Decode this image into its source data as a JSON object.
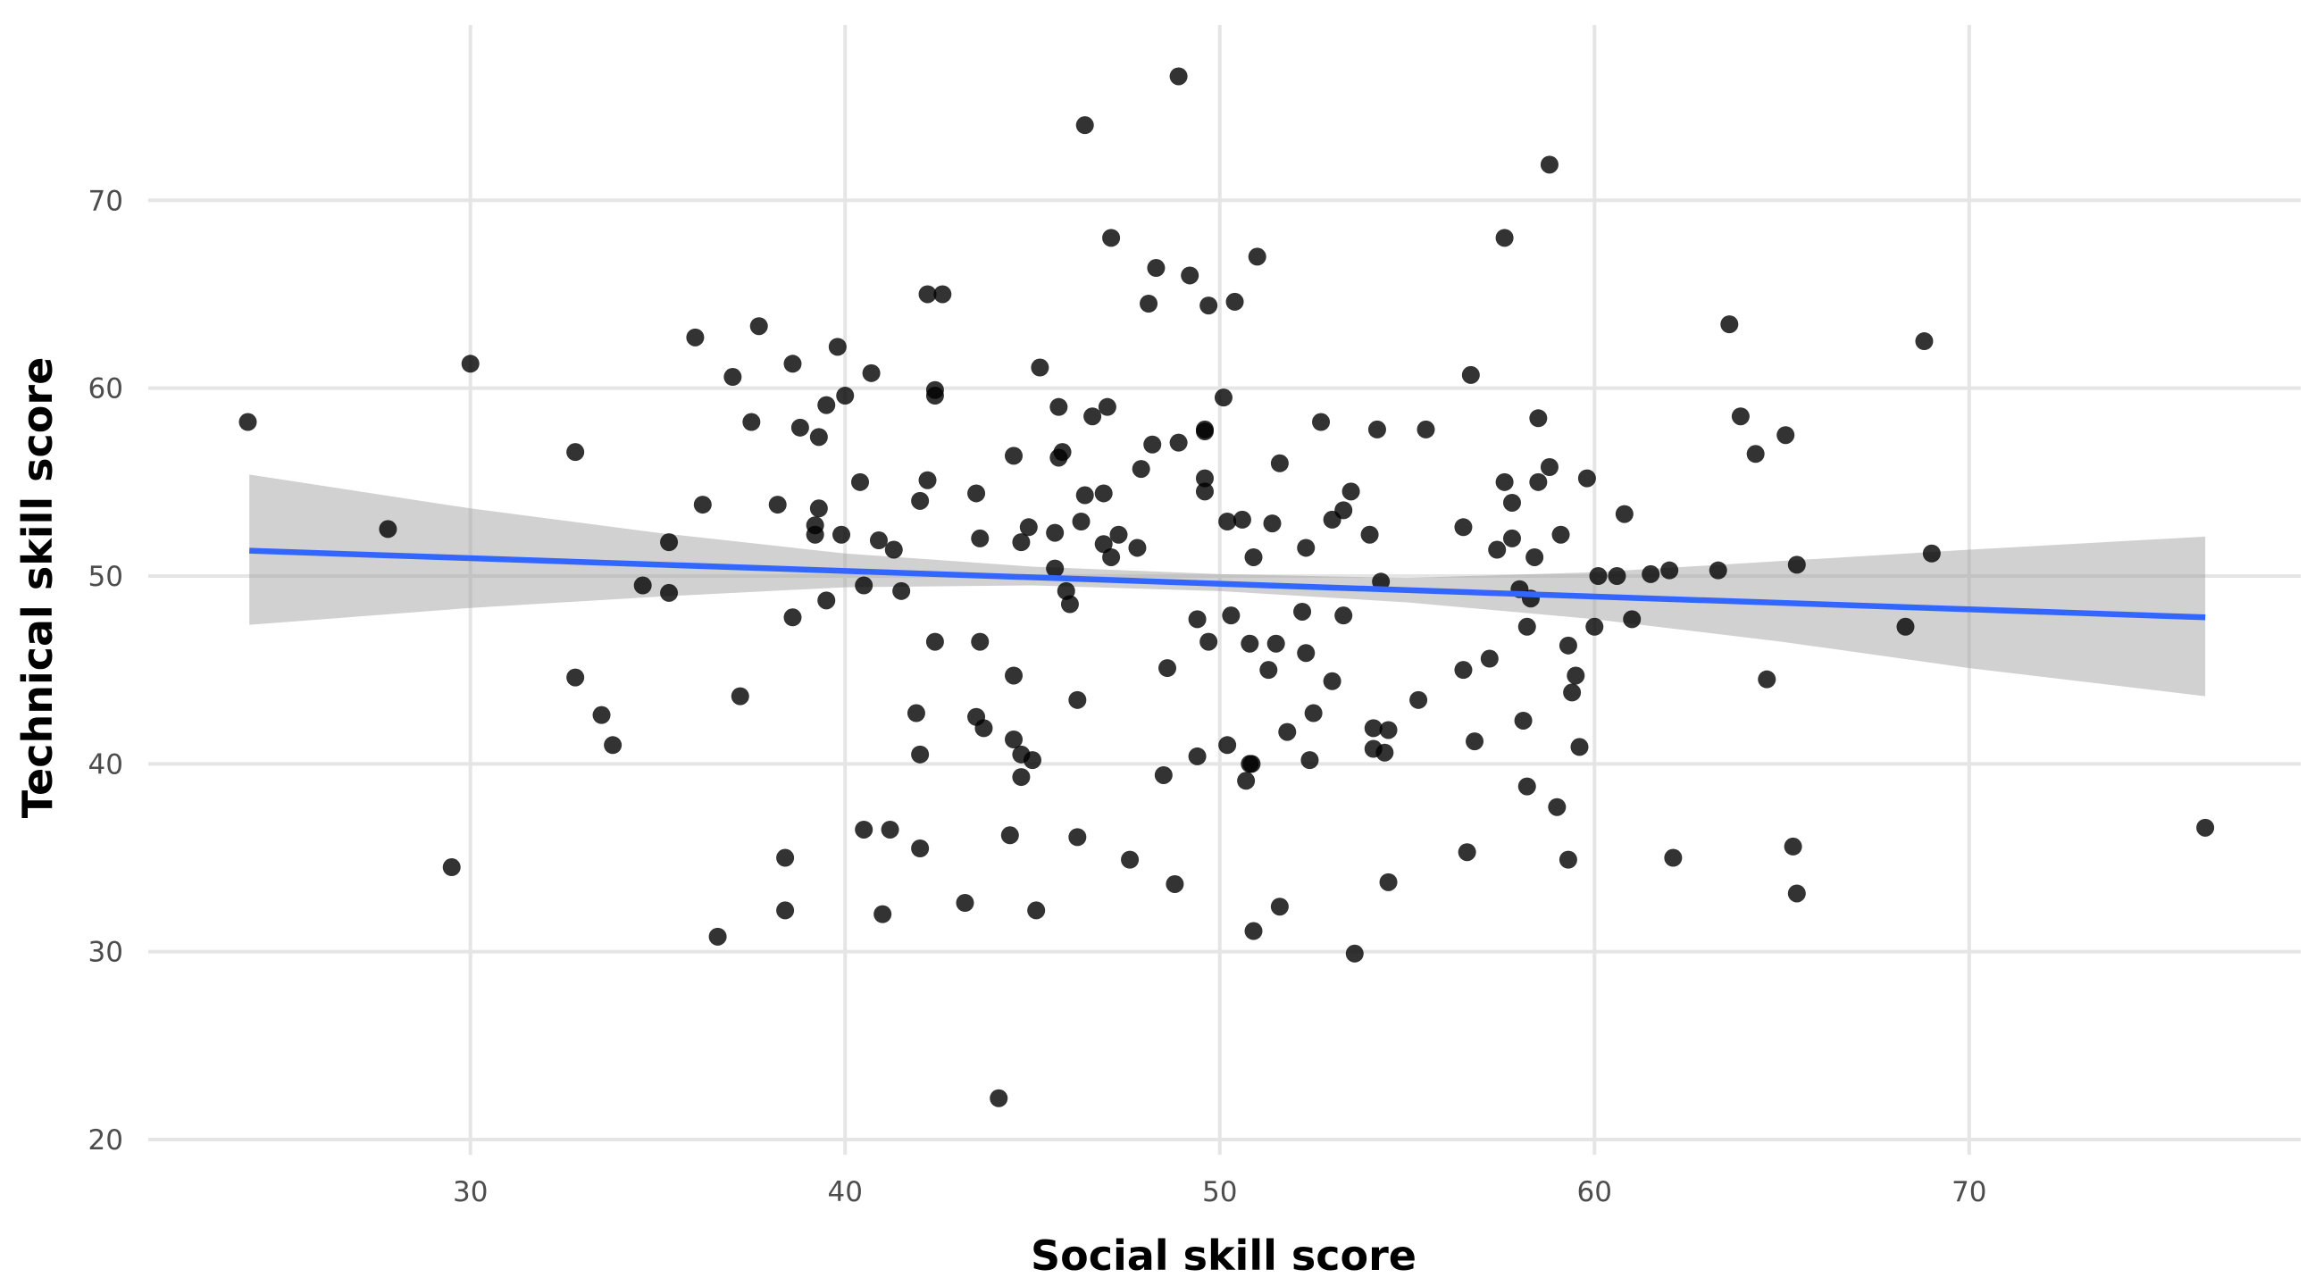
{
  "chart_data": {
    "type": "scatter",
    "title": "",
    "xlabel": "Social skill score",
    "ylabel": "Technical skill score",
    "xlim": [
      22,
      79
    ],
    "ylim": [
      19.5,
      79
    ],
    "xticks": [
      30,
      40,
      50,
      60,
      70
    ],
    "yticks": [
      20,
      30,
      40,
      50,
      60,
      70
    ],
    "grid": true,
    "point_color": "#000000",
    "point_opacity": 0.8,
    "trend_color": "#3366FF",
    "ribbon_color": "#999999",
    "points": [
      [
        24.06,
        58.2
      ],
      [
        27.8,
        52.5
      ],
      [
        30.0,
        61.3
      ],
      [
        29.5,
        34.5
      ],
      [
        32.8,
        56.6
      ],
      [
        32.8,
        44.6
      ],
      [
        33.5,
        42.6
      ],
      [
        33.8,
        41.0
      ],
      [
        34.6,
        49.5
      ],
      [
        35.3,
        49.1
      ],
      [
        35.3,
        51.8
      ],
      [
        36.0,
        62.7
      ],
      [
        36.2,
        53.8
      ],
      [
        36.6,
        30.8
      ],
      [
        37.0,
        60.6
      ],
      [
        37.2,
        43.6
      ],
      [
        37.5,
        58.2
      ],
      [
        37.7,
        63.3
      ],
      [
        38.2,
        53.8
      ],
      [
        38.4,
        35.0
      ],
      [
        38.4,
        32.2
      ],
      [
        38.6,
        47.8
      ],
      [
        38.6,
        61.3
      ],
      [
        38.8,
        57.9
      ],
      [
        39.2,
        52.2
      ],
      [
        39.2,
        52.7
      ],
      [
        39.3,
        57.4
      ],
      [
        39.3,
        53.6
      ],
      [
        39.5,
        59.1
      ],
      [
        39.5,
        48.7
      ],
      [
        39.8,
        62.2
      ],
      [
        39.9,
        52.2
      ],
      [
        40.0,
        59.6
      ],
      [
        40.4,
        55.0
      ],
      [
        40.5,
        49.5
      ],
      [
        40.5,
        36.5
      ],
      [
        40.7,
        60.8
      ],
      [
        40.9,
        51.9
      ],
      [
        41.0,
        32.0
      ],
      [
        41.2,
        36.5
      ],
      [
        41.3,
        51.4
      ],
      [
        41.5,
        49.2
      ],
      [
        41.9,
        42.7
      ],
      [
        42.0,
        54.0
      ],
      [
        42.0,
        40.5
      ],
      [
        42.0,
        35.5
      ],
      [
        42.2,
        55.1
      ],
      [
        42.2,
        65.0
      ],
      [
        42.4,
        59.6
      ],
      [
        42.4,
        59.9
      ],
      [
        42.4,
        46.5
      ],
      [
        42.6,
        65.0
      ],
      [
        43.2,
        32.6
      ],
      [
        43.5,
        54.4
      ],
      [
        43.5,
        42.5
      ],
      [
        43.6,
        52.0
      ],
      [
        43.6,
        46.5
      ],
      [
        43.7,
        41.9
      ],
      [
        44.1,
        22.2
      ],
      [
        44.4,
        36.2
      ],
      [
        44.5,
        44.7
      ],
      [
        44.5,
        56.4
      ],
      [
        44.5,
        41.3
      ],
      [
        44.7,
        51.8
      ],
      [
        44.7,
        40.5
      ],
      [
        44.7,
        39.3
      ],
      [
        44.9,
        52.6
      ],
      [
        45.0,
        40.2
      ],
      [
        45.1,
        32.2
      ],
      [
        45.2,
        61.1
      ],
      [
        45.6,
        52.3
      ],
      [
        45.6,
        50.4
      ],
      [
        45.7,
        56.3
      ],
      [
        45.7,
        59.0
      ],
      [
        45.8,
        56.6
      ],
      [
        45.9,
        49.2
      ],
      [
        46.0,
        48.5
      ],
      [
        46.2,
        43.4
      ],
      [
        46.2,
        36.1
      ],
      [
        46.3,
        52.9
      ],
      [
        46.4,
        74.0
      ],
      [
        46.4,
        54.3
      ],
      [
        46.6,
        58.5
      ],
      [
        46.9,
        51.7
      ],
      [
        46.9,
        54.4
      ],
      [
        47.0,
        59.0
      ],
      [
        47.1,
        68.0
      ],
      [
        47.1,
        51.0
      ],
      [
        47.3,
        52.2
      ],
      [
        47.6,
        34.9
      ],
      [
        47.8,
        51.5
      ],
      [
        47.9,
        55.7
      ],
      [
        48.1,
        64.5
      ],
      [
        48.2,
        57.0
      ],
      [
        48.3,
        66.4
      ],
      [
        48.5,
        39.4
      ],
      [
        48.6,
        45.1
      ],
      [
        48.8,
        33.6
      ],
      [
        48.9,
        57.1
      ],
      [
        48.9,
        76.6
      ],
      [
        49.2,
        66.0
      ],
      [
        49.4,
        40.4
      ],
      [
        49.4,
        47.7
      ],
      [
        49.6,
        57.7
      ],
      [
        49.6,
        57.8
      ],
      [
        49.6,
        55.2
      ],
      [
        49.6,
        54.5
      ],
      [
        49.7,
        46.5
      ],
      [
        49.7,
        64.4
      ],
      [
        50.1,
        59.5
      ],
      [
        50.2,
        41.0
      ],
      [
        50.2,
        52.9
      ],
      [
        50.3,
        47.9
      ],
      [
        50.4,
        64.6
      ],
      [
        50.6,
        53.0
      ],
      [
        50.7,
        39.1
      ],
      [
        50.8,
        40.0
      ],
      [
        50.85,
        40.0
      ],
      [
        50.8,
        46.4
      ],
      [
        50.9,
        31.1
      ],
      [
        50.9,
        51.0
      ],
      [
        51.0,
        67.0
      ],
      [
        51.3,
        45.0
      ],
      [
        51.4,
        52.8
      ],
      [
        51.5,
        46.4
      ],
      [
        51.6,
        56.0
      ],
      [
        51.6,
        32.4
      ],
      [
        51.8,
        41.7
      ],
      [
        52.2,
        48.1
      ],
      [
        52.3,
        45.9
      ],
      [
        52.3,
        51.5
      ],
      [
        52.4,
        40.2
      ],
      [
        52.5,
        42.7
      ],
      [
        52.7,
        58.2
      ],
      [
        53.0,
        44.4
      ],
      [
        53.0,
        53.0
      ],
      [
        53.3,
        47.9
      ],
      [
        53.3,
        53.5
      ],
      [
        53.5,
        54.5
      ],
      [
        53.6,
        29.9
      ],
      [
        54.0,
        52.2
      ],
      [
        54.1,
        40.8
      ],
      [
        54.1,
        41.9
      ],
      [
        54.2,
        57.8
      ],
      [
        54.3,
        49.7
      ],
      [
        54.4,
        40.6
      ],
      [
        54.5,
        41.8
      ],
      [
        54.5,
        33.7
      ],
      [
        55.3,
        43.4
      ],
      [
        55.5,
        57.8
      ],
      [
        56.5,
        45.0
      ],
      [
        56.5,
        52.6
      ],
      [
        56.6,
        35.3
      ],
      [
        56.7,
        60.7
      ],
      [
        56.8,
        41.2
      ],
      [
        57.2,
        45.6
      ],
      [
        57.4,
        51.4
      ],
      [
        57.6,
        55.0
      ],
      [
        57.6,
        68.0
      ],
      [
        57.8,
        53.9
      ],
      [
        57.8,
        52.0
      ],
      [
        58.0,
        49.3
      ],
      [
        58.1,
        42.3
      ],
      [
        58.2,
        38.8
      ],
      [
        58.2,
        47.3
      ],
      [
        58.3,
        48.8
      ],
      [
        58.4,
        51.0
      ],
      [
        58.5,
        55.0
      ],
      [
        58.5,
        58.4
      ],
      [
        58.8,
        55.8
      ],
      [
        58.8,
        71.9
      ],
      [
        59.0,
        37.7
      ],
      [
        59.1,
        52.2
      ],
      [
        59.3,
        46.3
      ],
      [
        59.3,
        34.9
      ],
      [
        59.4,
        43.8
      ],
      [
        59.5,
        44.7
      ],
      [
        59.6,
        40.9
      ],
      [
        59.8,
        55.2
      ],
      [
        60.0,
        47.3
      ],
      [
        60.1,
        50.0
      ],
      [
        60.6,
        50.0
      ],
      [
        60.8,
        53.3
      ],
      [
        61.0,
        47.7
      ],
      [
        61.5,
        50.1
      ],
      [
        62.0,
        50.3
      ],
      [
        62.1,
        35.0
      ],
      [
        63.3,
        50.3
      ],
      [
        63.6,
        63.4
      ],
      [
        63.9,
        58.5
      ],
      [
        64.3,
        56.5
      ],
      [
        64.6,
        44.5
      ],
      [
        65.1,
        57.5
      ],
      [
        65.3,
        35.6
      ],
      [
        65.4,
        50.6
      ],
      [
        65.4,
        33.1
      ],
      [
        68.3,
        47.3
      ],
      [
        68.8,
        62.5
      ],
      [
        69.0,
        51.2
      ],
      [
        76.3,
        36.6
      ]
    ],
    "trend": {
      "x": [
        24.1,
        76.3
      ],
      "y": [
        51.35,
        47.8
      ]
    },
    "ribbon": [
      [
        24.1,
        47.4,
        55.4
      ],
      [
        30,
        48.3,
        53.6
      ],
      [
        35,
        48.9,
        52.3
      ],
      [
        40,
        49.4,
        51.2
      ],
      [
        45,
        49.5,
        50.5
      ],
      [
        50,
        49.2,
        50.1
      ],
      [
        55,
        48.6,
        49.9
      ],
      [
        60,
        47.7,
        50.2
      ],
      [
        65,
        46.5,
        50.8
      ],
      [
        70,
        45.1,
        51.4
      ],
      [
        76.3,
        43.6,
        52.1
      ]
    ]
  }
}
